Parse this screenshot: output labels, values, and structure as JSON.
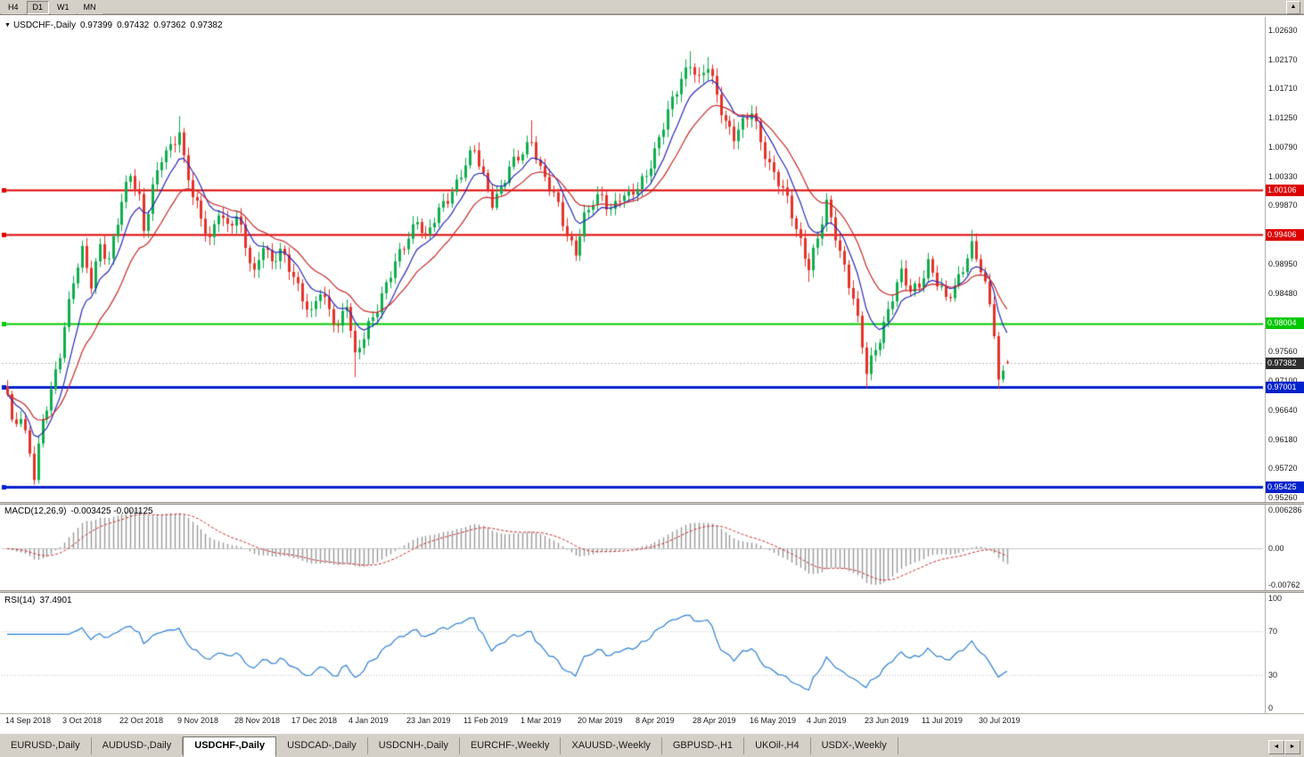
{
  "toolbar": {
    "timeframes": [
      {
        "label": "H4",
        "active": false
      },
      {
        "label": "D1",
        "active": true
      },
      {
        "label": "W1",
        "active": false
      },
      {
        "label": "MN",
        "active": false
      }
    ],
    "scroll_up_icon": "▲"
  },
  "chart": {
    "title": {
      "menu_icon": "▼",
      "name": "USDCHF-,Daily",
      "open": "0.97399",
      "high": "0.97432",
      "low": "0.97362",
      "close": "0.97382"
    }
  },
  "chart_data": {
    "type": "candlestick",
    "symbol": "USDCHF",
    "timeframe": "Daily",
    "last_bar_ohlc": {
      "open": 0.97399,
      "high": 0.97432,
      "low": 0.97362,
      "close": 0.97382
    },
    "bar_count": 228,
    "x_axis": {
      "bars_per_label": 13,
      "labels": [
        "14 Sep 2018",
        "3 Oct 2018",
        "22 Oct 2018",
        "9 Nov 2018",
        "28 Nov 2018",
        "17 Dec 2018",
        "4 Jan 2019",
        "23 Jan 2019",
        "11 Feb 2019",
        "1 Mar 2019",
        "20 Mar 2019",
        "8 Apr 2019",
        "28 Apr 2019",
        "16 May 2019",
        "4 Jun 2019",
        "23 Jun 2019",
        "11 Jul 2019",
        "30 Jul 2019"
      ]
    },
    "y_axis": {
      "grid": false,
      "ticks": [
        "1.02630",
        "1.02170",
        "1.01710",
        "1.01250",
        "1.00790",
        "1.00330",
        "0.99870",
        "0.98950",
        "0.98480",
        "0.97560",
        "0.97100",
        "0.96640",
        "0.96180",
        "0.95720",
        "0.95260"
      ]
    },
    "horizontal_lines": [
      {
        "label": "1.00106",
        "value": 1.00106,
        "color": "#dd0000",
        "width": 2
      },
      {
        "label": "0.99406",
        "value": 0.99406,
        "color": "#dd0000",
        "width": 2
      },
      {
        "label": "0.98004",
        "value": 0.98004,
        "color": "#00c800",
        "width": 2
      },
      {
        "label": "0.97001",
        "value": 0.97001,
        "color": "#0022cc",
        "width": 3
      },
      {
        "label": "0.95425",
        "value": 0.95425,
        "color": "#0022cc",
        "width": 3
      }
    ],
    "current_price": {
      "label": "0.97382",
      "value": 0.97382,
      "badge_color": "#2f2f2f"
    },
    "close_anchors": [
      [
        0,
        0.9685
      ],
      [
        1,
        0.964
      ],
      [
        3,
        0.9658
      ],
      [
        5,
        0.96
      ],
      [
        6,
        0.956
      ],
      [
        8,
        0.9642
      ],
      [
        10,
        0.9692
      ],
      [
        12,
        0.9758
      ],
      [
        13,
        0.98
      ],
      [
        15,
        0.9868
      ],
      [
        17,
        0.991
      ],
      [
        19,
        0.9862
      ],
      [
        21,
        0.9928
      ],
      [
        23,
        0.9902
      ],
      [
        26,
        0.9988
      ],
      [
        28,
        1.0038
      ],
      [
        30,
        1.0002
      ],
      [
        31,
        0.9952
      ],
      [
        33,
        1.0012
      ],
      [
        35,
        1.0058
      ],
      [
        37,
        1.0078
      ],
      [
        39,
        1.0108
      ],
      [
        40,
        1.0062
      ],
      [
        42,
        1.0002
      ],
      [
        44,
        0.9962
      ],
      [
        46,
        0.9932
      ],
      [
        48,
        0.9984
      ],
      [
        50,
        0.9952
      ],
      [
        52,
        0.9966
      ],
      [
        54,
        0.9922
      ],
      [
        56,
        0.9882
      ],
      [
        58,
        0.993
      ],
      [
        60,
        0.9892
      ],
      [
        62,
        0.9912
      ],
      [
        65,
        0.988
      ],
      [
        67,
        0.9842
      ],
      [
        69,
        0.9812
      ],
      [
        71,
        0.985
      ],
      [
        73,
        0.9822
      ],
      [
        75,
        0.98
      ],
      [
        77,
        0.9832
      ],
      [
        79,
        0.9742
      ],
      [
        80,
        0.9762
      ],
      [
        82,
        0.98
      ],
      [
        84,
        0.983
      ],
      [
        86,
        0.986
      ],
      [
        88,
        0.9892
      ],
      [
        91,
        0.994
      ],
      [
        93,
        0.9968
      ],
      [
        95,
        0.9932
      ],
      [
        97,
        0.9962
      ],
      [
        99,
        0.999
      ],
      [
        101,
        1.0012
      ],
      [
        104,
        1.005
      ],
      [
        106,
        1.0072
      ],
      [
        108,
        1.0032
      ],
      [
        110,
        0.9996
      ],
      [
        112,
        1.0012
      ],
      [
        114,
        1.0042
      ],
      [
        117,
        1.0072
      ],
      [
        119,
        1.0094
      ],
      [
        121,
        1.0042
      ],
      [
        123,
        1.0012
      ],
      [
        125,
        0.9986
      ],
      [
        127,
        0.9942
      ],
      [
        129,
        0.9916
      ],
      [
        131,
        0.9964
      ],
      [
        133,
        0.999
      ],
      [
        135,
        1.0004
      ],
      [
        137,
        0.9982
      ],
      [
        139,
        1.0
      ],
      [
        141,
        0.9996
      ],
      [
        143,
        1.0016
      ],
      [
        145,
        1.004
      ],
      [
        147,
        1.0072
      ],
      [
        149,
        1.011
      ],
      [
        151,
        1.015
      ],
      [
        153,
        1.019
      ],
      [
        155,
        1.0214
      ],
      [
        157,
        1.0182
      ],
      [
        159,
        1.0204
      ],
      [
        161,
        1.016
      ],
      [
        163,
        1.0122
      ],
      [
        165,
        1.0096
      ],
      [
        167,
        1.0112
      ],
      [
        169,
        1.0134
      ],
      [
        171,
        1.0092
      ],
      [
        173,
        1.0052
      ],
      [
        175,
        1.0022
      ],
      [
        177,
        0.9992
      ],
      [
        179,
        0.9952
      ],
      [
        181,
        0.9912
      ],
      [
        182,
        0.9892
      ],
      [
        184,
        0.9932
      ],
      [
        186,
        0.9986
      ],
      [
        188,
        0.9942
      ],
      [
        190,
        0.9892
      ],
      [
        192,
        0.984
      ],
      [
        194,
        0.9762
      ],
      [
        195,
        0.9722
      ],
      [
        197,
        0.9762
      ],
      [
        199,
        0.9802
      ],
      [
        201,
        0.9842
      ],
      [
        203,
        0.9876
      ],
      [
        205,
        0.9852
      ],
      [
        207,
        0.9866
      ],
      [
        209,
        0.9896
      ],
      [
        211,
        0.9862
      ],
      [
        213,
        0.9836
      ],
      [
        215,
        0.9862
      ],
      [
        217,
        0.9892
      ],
      [
        219,
        0.992
      ],
      [
        221,
        0.9882
      ],
      [
        223,
        0.9832
      ],
      [
        224,
        0.9792
      ],
      [
        225,
        0.9712
      ],
      [
        226,
        0.9726
      ],
      [
        227,
        0.97382
      ]
    ],
    "wick_overrides": [
      [
        6,
        "low",
        0.9546
      ],
      [
        39,
        "high",
        1.0128
      ],
      [
        79,
        "low",
        0.9716
      ],
      [
        119,
        "high",
        1.0121
      ],
      [
        155,
        "high",
        1.023
      ],
      [
        159,
        "high",
        1.0221
      ],
      [
        182,
        "low",
        0.9866
      ],
      [
        186,
        "high",
        1.0006
      ],
      [
        195,
        "low",
        0.9699
      ],
      [
        203,
        "high",
        0.9901
      ],
      [
        219,
        "high",
        0.9948
      ],
      [
        225,
        "low",
        0.9697
      ]
    ],
    "moving_averages": [
      {
        "type": "EMA",
        "period": 8,
        "color": "#2828bb"
      },
      {
        "type": "EMA",
        "period": 18,
        "color": "#c82828"
      }
    ],
    "colors": {
      "up": "#0fae4e",
      "down": "#e5332a",
      "background": "#ffffff",
      "axis_text": "#1a1a1a"
    },
    "indicators": {
      "macd": {
        "name": "MACD(12,26,9)",
        "values": "-0.003425 -0.001125",
        "fast": 12,
        "slow": 26,
        "signal": 9,
        "axis_labels": [
          "0.006286",
          "0.00",
          "-0.00762"
        ],
        "histogram_color": "#999999",
        "signal_color": "#c82828"
      },
      "rsi": {
        "name": "RSI(14)",
        "value": "37.4901",
        "period": 14,
        "axis_labels": [
          "100",
          "70",
          "30",
          "0"
        ],
        "axis_values": [
          100,
          70,
          30,
          0
        ],
        "levels": [
          70,
          30
        ],
        "line_color": "#2a7fd2"
      }
    }
  },
  "tabs": {
    "items": [
      {
        "label": "EURUSD-,Daily",
        "active": false
      },
      {
        "label": "AUDUSD-,Daily",
        "active": false
      },
      {
        "label": "USDCHF-,Daily",
        "active": true
      },
      {
        "label": "USDCAD-,Daily",
        "active": false
      },
      {
        "label": "USDCNH-,Daily",
        "active": false
      },
      {
        "label": "EURCHF-,Weekly",
        "active": false
      },
      {
        "label": "XAUUSD-,Weekly",
        "active": false
      },
      {
        "label": "GBPUSD-,H1",
        "active": false
      },
      {
        "label": "UKOil-,H4",
        "active": false
      },
      {
        "label": "USDX-,Weekly",
        "active": false
      }
    ],
    "scroll_left_icon": "◄",
    "scroll_right_icon": "►"
  }
}
